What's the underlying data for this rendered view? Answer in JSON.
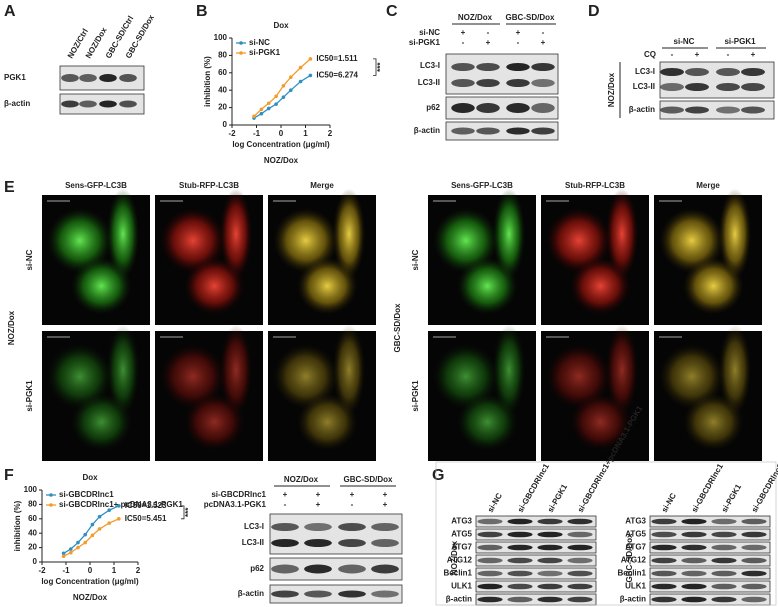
{
  "panel_labels": [
    "A",
    "B",
    "C",
    "D",
    "E",
    "F",
    "G"
  ],
  "panel_a": {
    "columns": [
      "NOZ/Ctrl",
      "NOZ/Dox",
      "GBC-SD/Ctrl",
      "GBC-SD/Dox"
    ],
    "rows": [
      "PGK1",
      "β-actin"
    ]
  },
  "panel_c": {
    "groups": [
      "NOZ/Dox",
      "GBC-SD/Dox"
    ],
    "conditions": [
      "si-NC",
      "si-PGK1"
    ],
    "signs": [
      [
        "+",
        "-",
        "+",
        "-"
      ],
      [
        "-",
        "+",
        "-",
        "+"
      ]
    ],
    "rows": [
      "LC3-I",
      "LC3-II",
      "p62",
      "β-actin"
    ]
  },
  "panel_d": {
    "groups": [
      "si-NC",
      "si-PGK1"
    ],
    "condition": "CQ",
    "signs": [
      "-",
      "+",
      "-",
      "+"
    ],
    "side_label": "NOZ/Dox",
    "rows": [
      "LC3-I",
      "LC3-II",
      "β-actin"
    ]
  },
  "panel_e": {
    "columns": [
      "Sens-GFP-LC3B",
      "Stub-RFP-LC3B",
      "Merge"
    ],
    "rows": [
      "si-NC",
      "si-PGK1"
    ],
    "cell_lines": [
      "NOZ/Dox",
      "GBC-SD/Dox"
    ]
  },
  "panel_f_blot": {
    "groups": [
      "NOZ/Dox",
      "GBC-SD/Dox"
    ],
    "conditions": [
      "si-GBCDRlnc1",
      "pcDNA3.1-PGK1"
    ],
    "signs": [
      [
        "+",
        "+",
        "+",
        "+"
      ],
      [
        "-",
        "+",
        "-",
        "+"
      ]
    ],
    "rows": [
      "LC3-I",
      "LC3-II",
      "p62",
      "β-actin"
    ]
  },
  "panel_g": {
    "columns": [
      "si-NC",
      "si-GBCDRlnc1",
      "si-PGK1",
      "si-GBCDRlnc1+pcDNA3.1-PGK1"
    ],
    "rows": [
      "ATG3",
      "ATG5",
      "ATG7",
      "ATG12",
      "Beclin1",
      "ULK1",
      "β-actin"
    ],
    "cell_lines": [
      "NOZ/Dox",
      "GBC-SD/Dox"
    ]
  },
  "chart_data": [
    {
      "type": "line",
      "title": "Dox",
      "xlabel": "log Concentration (μg/ml)",
      "ylabel": "inhibition (%)",
      "subtitle": "NOZ/Dox",
      "x": [
        -1.1,
        -0.8,
        -0.5,
        -0.2,
        0.1,
        0.4,
        0.8,
        1.2
      ],
      "series": [
        {
          "name": "si-NC",
          "color": "#2f8fc2",
          "values": [
            8,
            13,
            19,
            24,
            32,
            40,
            50,
            57
          ],
          "label": "IC50=6.274"
        },
        {
          "name": "si-PGK1",
          "color": "#f39c2b",
          "values": [
            10,
            18,
            25,
            33,
            45,
            55,
            66,
            76
          ],
          "label": "IC50=1.511"
        }
      ],
      "significance": "***",
      "xlim": [
        -2,
        2
      ],
      "xticks": [
        -2,
        -1,
        0,
        1,
        2
      ],
      "ylim": [
        0,
        100
      ],
      "yticks": [
        0,
        20,
        40,
        60,
        80,
        100
      ],
      "legend": "upper left"
    },
    {
      "type": "line",
      "title": "Dox",
      "xlabel": "log Concentration (μg/ml)",
      "ylabel": "inhibition (%)",
      "subtitle": "NOZ/Dox",
      "x": [
        -1.1,
        -0.8,
        -0.5,
        -0.2,
        0.1,
        0.4,
        0.8,
        1.2
      ],
      "series": [
        {
          "name": "si-GBCDRlnc1",
          "color": "#2f8fc2",
          "values": [
            12,
            18,
            27,
            38,
            52,
            63,
            72,
            78
          ],
          "label": "IC50=1.523"
        },
        {
          "name": "si-GBCDRlnc1+ pcDNA3.1-PGK1",
          "color": "#f39c2b",
          "values": [
            8,
            13,
            20,
            27,
            37,
            46,
            54,
            60
          ],
          "label": "IC50=5.451"
        }
      ],
      "significance": "***",
      "xlim": [
        -2,
        2
      ],
      "xticks": [
        -2,
        -1,
        0,
        1,
        2
      ],
      "ylim": [
        0,
        100
      ],
      "yticks": [
        0,
        20,
        40,
        60,
        80,
        100
      ],
      "legend": "upper left"
    }
  ]
}
